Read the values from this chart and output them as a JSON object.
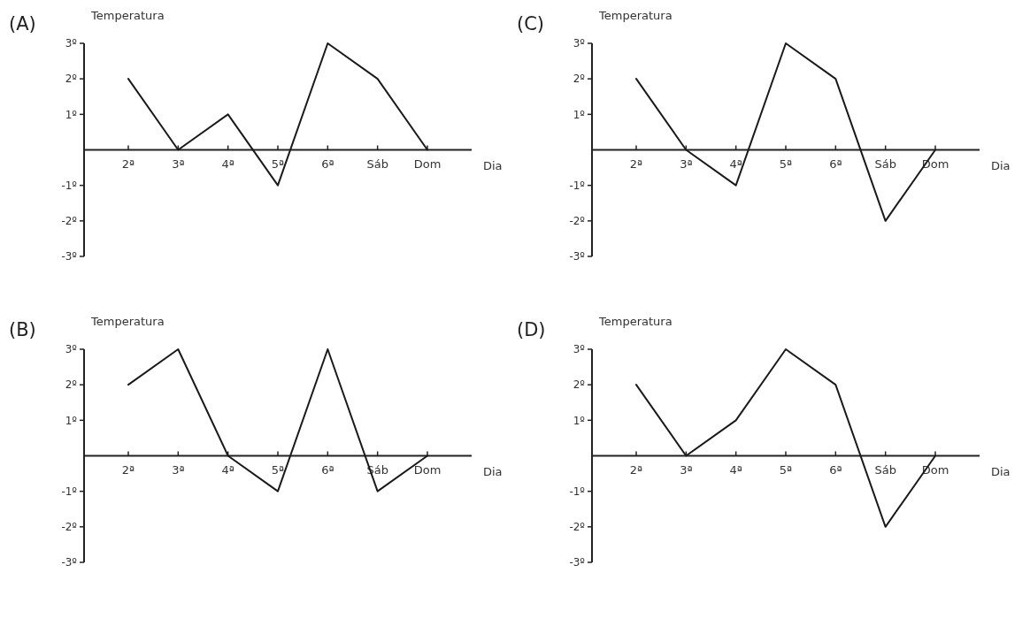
{
  "chart_data": [
    {
      "type": "line",
      "title": "(A)",
      "ylabel": "Temperatura",
      "xlabel": "Dia",
      "categories": [
        "2ª",
        "3ª",
        "4ª",
        "5ª",
        "6ª",
        "Sáb",
        "Dom"
      ],
      "series": [
        {
          "color": "#1a1a1a",
          "values": [
            2,
            0,
            1,
            -1,
            3,
            2,
            0
          ]
        }
      ],
      "ylim": [
        -3,
        3
      ],
      "yticks": [
        {
          "value": 3,
          "label": "3º"
        },
        {
          "value": 2,
          "label": "2º"
        },
        {
          "value": 1,
          "label": "1º"
        },
        {
          "value": -1,
          "label": "-1º"
        },
        {
          "value": -2,
          "label": "-2º"
        },
        {
          "value": -3,
          "label": "-3º"
        }
      ]
    },
    {
      "type": "line",
      "title": "(C)",
      "ylabel": "Temperatura",
      "xlabel": "Dia",
      "categories": [
        "2ª",
        "3ª",
        "4ª",
        "5ª",
        "6ª",
        "Sáb",
        "Dom"
      ],
      "series": [
        {
          "color": "#1a1a1a",
          "values": [
            2,
            0,
            -1,
            3,
            2,
            -2,
            0
          ]
        }
      ],
      "ylim": [
        -3,
        3
      ],
      "yticks": [
        {
          "value": 3,
          "label": "3º"
        },
        {
          "value": 2,
          "label": "2º"
        },
        {
          "value": 1,
          "label": "1º"
        },
        {
          "value": -1,
          "label": "-1º"
        },
        {
          "value": -2,
          "label": "-2º"
        },
        {
          "value": -3,
          "label": "-3º"
        }
      ]
    },
    {
      "type": "line",
      "title": "(B)",
      "ylabel": "Temperatura",
      "xlabel": "Dia",
      "categories": [
        "2ª",
        "3ª",
        "4ª",
        "5ª",
        "6ª",
        "Sáb",
        "Dom"
      ],
      "series": [
        {
          "color": "#1a1a1a",
          "values": [
            2,
            3,
            0,
            -1,
            3,
            -1,
            0
          ]
        }
      ],
      "ylim": [
        -3,
        3
      ],
      "yticks": [
        {
          "value": 3,
          "label": "3º"
        },
        {
          "value": 2,
          "label": "2º"
        },
        {
          "value": 1,
          "label": "1º"
        },
        {
          "value": -1,
          "label": "-1º"
        },
        {
          "value": -2,
          "label": "-2º"
        },
        {
          "value": -3,
          "label": "-3º"
        }
      ]
    },
    {
      "type": "line",
      "title": "(D)",
      "ylabel": "Temperatura",
      "xlabel": "Dia",
      "categories": [
        "2ª",
        "3ª",
        "4ª",
        "5ª",
        "6ª",
        "Sáb",
        "Dom"
      ],
      "series": [
        {
          "color": "#1a1a1a",
          "values": [
            2,
            0,
            1,
            3,
            2,
            -2,
            0
          ]
        }
      ],
      "ylim": [
        -3,
        3
      ],
      "yticks": [
        {
          "value": 3,
          "label": "3º"
        },
        {
          "value": 2,
          "label": "2º"
        },
        {
          "value": 1,
          "label": "1º"
        },
        {
          "value": -1,
          "label": "-1º"
        },
        {
          "value": -2,
          "label": "-2º"
        },
        {
          "value": -3,
          "label": "-3º"
        }
      ]
    }
  ]
}
